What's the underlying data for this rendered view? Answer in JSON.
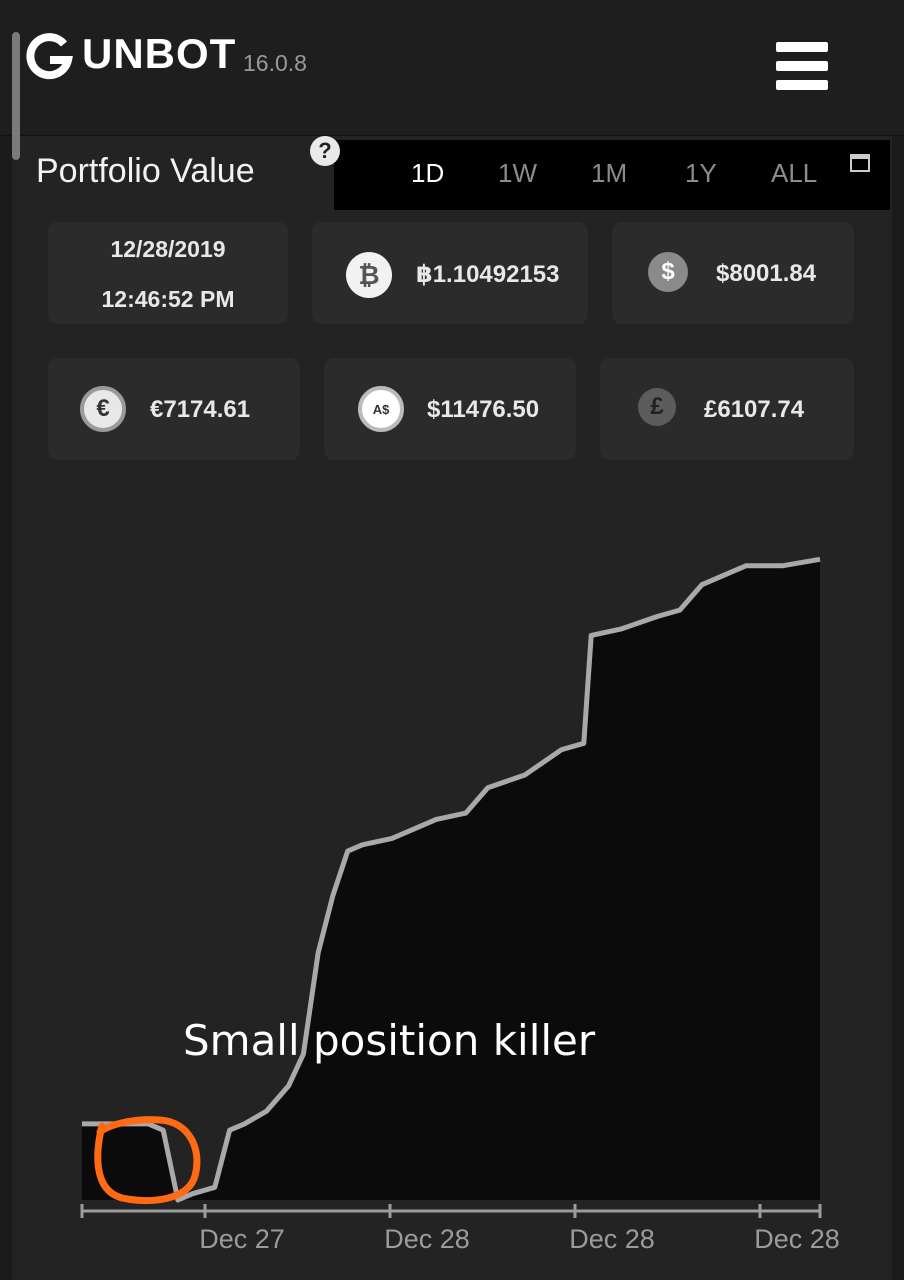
{
  "header": {
    "brand": "UNBOT",
    "version": "16.0.8"
  },
  "panel": {
    "title": "Portfolio Value",
    "help_glyph": "?",
    "tabs": [
      {
        "label": "1D",
        "active": true
      },
      {
        "label": "1W",
        "active": false
      },
      {
        "label": "1M",
        "active": false
      },
      {
        "label": "1Y",
        "active": false
      },
      {
        "label": "ALL",
        "active": false
      }
    ]
  },
  "stats": {
    "date": "12/28/2019",
    "time": "12:46:52 PM",
    "btc": {
      "value": "฿1.10492153",
      "icon": "bitcoin-icon"
    },
    "usd": {
      "value": "$8001.84",
      "icon": "dollar-icon"
    },
    "eur": {
      "value": "€7174.61",
      "icon": "euro-icon"
    },
    "aud": {
      "value": "$11476.50",
      "icon": "aud-icon",
      "glyph": "A$"
    },
    "gbp": {
      "value": "£6107.74",
      "icon": "pound-icon"
    }
  },
  "chart_data": {
    "type": "area",
    "x_tick_labels": [
      "Dec 27",
      "Dec 28",
      "Dec 28",
      "Dec 28"
    ],
    "x": [
      0,
      0.09,
      0.11,
      0.13,
      0.15,
      0.18,
      0.2,
      0.22,
      0.25,
      0.28,
      0.3,
      0.32,
      0.34,
      0.36,
      0.38,
      0.42,
      0.48,
      0.52,
      0.55,
      0.6,
      0.65,
      0.68,
      0.69,
      0.73,
      0.78,
      0.81,
      0.84,
      0.86,
      0.9,
      0.95,
      1.0
    ],
    "y": [
      0.12,
      0.12,
      0.11,
      0.0,
      0.01,
      0.02,
      0.11,
      0.12,
      0.14,
      0.18,
      0.23,
      0.39,
      0.48,
      0.55,
      0.56,
      0.57,
      0.6,
      0.61,
      0.65,
      0.67,
      0.71,
      0.72,
      0.89,
      0.9,
      0.92,
      0.93,
      0.97,
      0.98,
      1.0,
      1.0,
      1.01
    ],
    "line_color": "#a9a9a9",
    "fill_color": "#0b0b0b",
    "annotation": {
      "text": "Small position killer",
      "color": "#ff6a13"
    }
  }
}
